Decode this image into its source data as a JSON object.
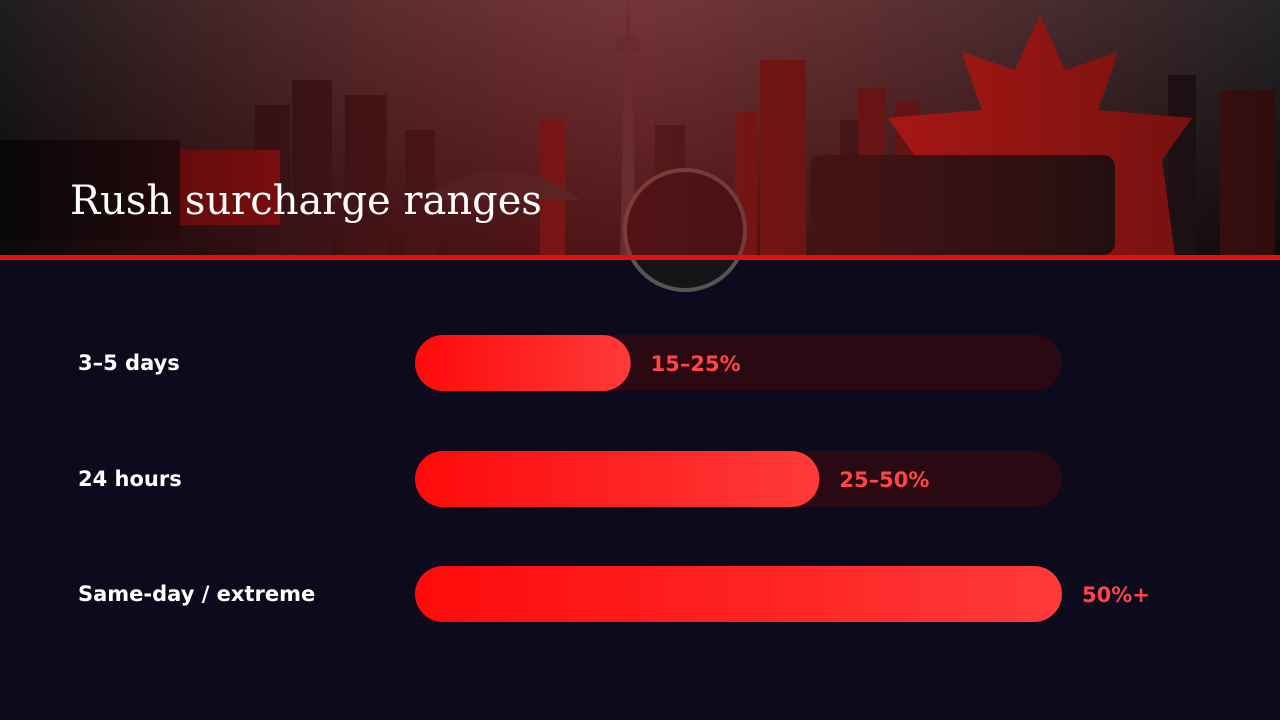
{
  "chart_data": {
    "type": "bar",
    "orientation": "horizontal",
    "title": "Rush surcharge ranges",
    "categories": [
      "3–5 days",
      "24 hours",
      "Same-day / extreme"
    ],
    "values": [
      20,
      37.5,
      60
    ],
    "value_labels": [
      "15–25%",
      "25–50%",
      "50%+"
    ],
    "xlim": [
      0,
      60
    ],
    "color": "#ff1a1a",
    "track_color": "#2a0912"
  }
}
